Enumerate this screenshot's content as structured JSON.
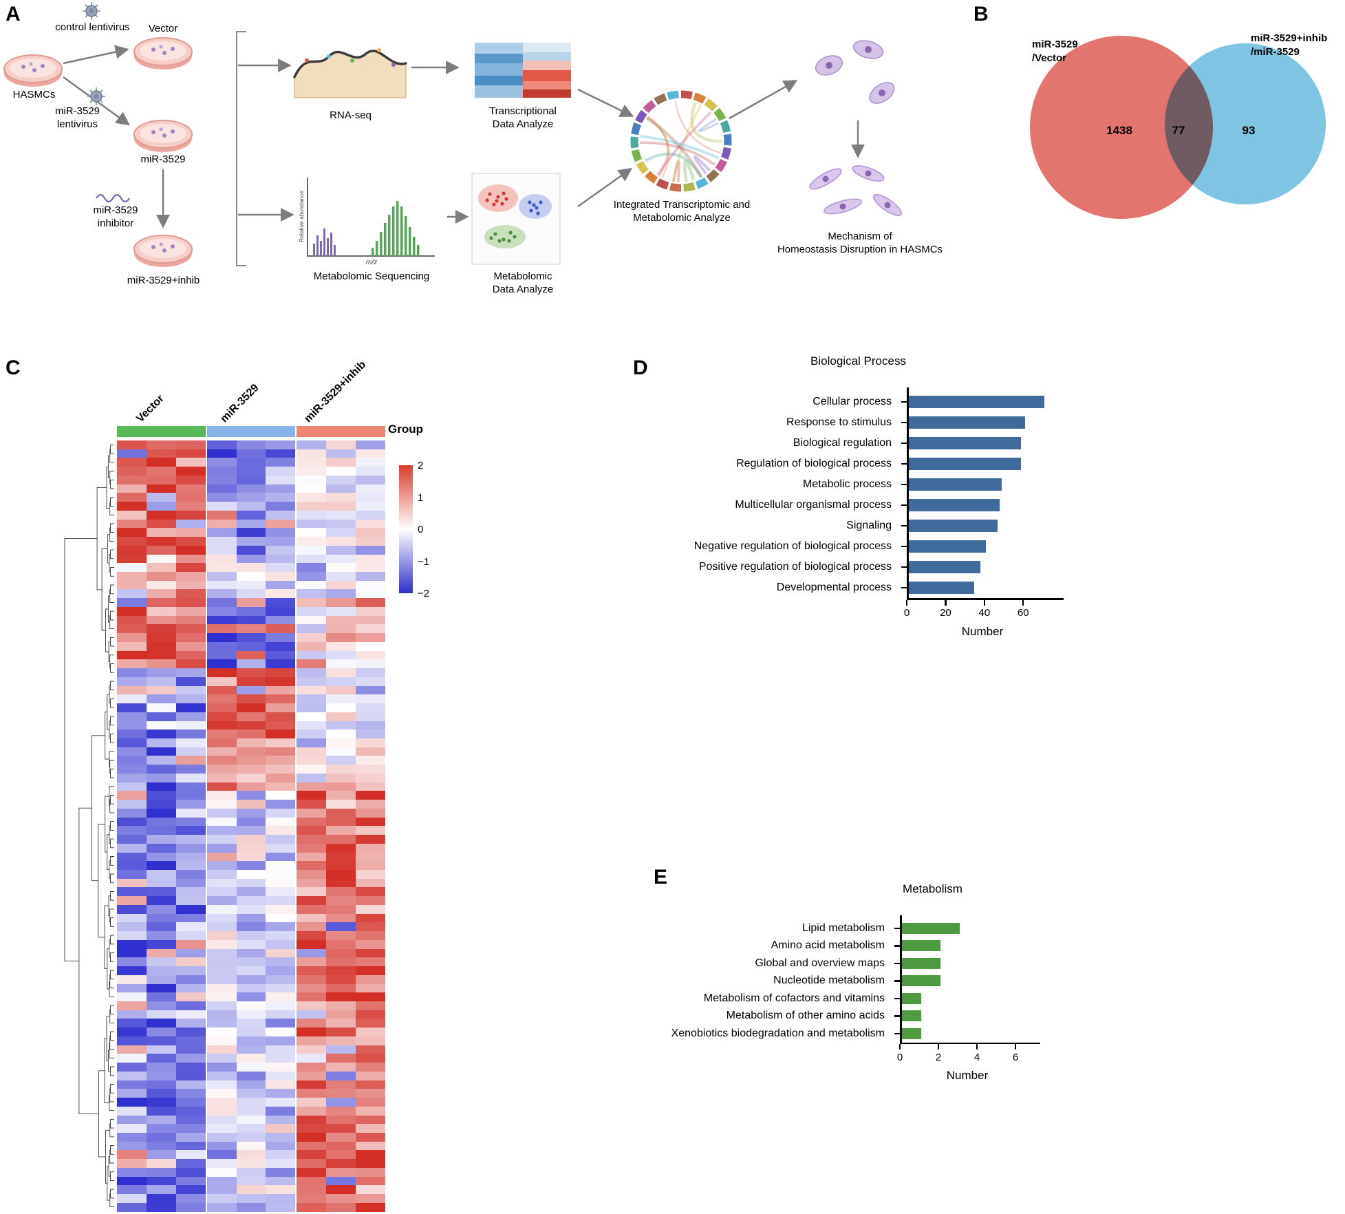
{
  "panelA": {
    "label": "A",
    "control_lentivirus": "control lentivirus",
    "hasmcs": "HASMCs",
    "vector": "Vector",
    "mir_lentivirus": "miR-3529\nlentivirus",
    "mir3529": "miR-3529",
    "mir_inhibitor": "miR-3529\ninhibitor",
    "mir_inhib_dish": "miR-3529+inhib",
    "rnaseq": "RNA-seq",
    "metabolomic_seq": "Metabolomic Sequencing",
    "transcriptional": "Transcriptional\nData Analyze",
    "metabolomic_da": "Metabolomic\nData Analyze",
    "integrated": "Integrated Transcriptomic and\nMetabolomic Analyze",
    "mechanism": "Mechanism of\nHomeostasis Disruption in HASMCs",
    "mini_ylabel": "Relative abundance",
    "mini_xlabel": "m/z"
  },
  "panelB": {
    "label": "B",
    "left_label": "miR-3529\n/Vector",
    "right_label": "miR-3529+inhib\n/miR-3529",
    "left_value": "1438",
    "overlap_value": "77",
    "right_value": "93",
    "left_color": "#e2766f",
    "right_color": "#7fc4e2"
  },
  "panelC": {
    "label": "C",
    "groups": [
      {
        "name": "Vector",
        "color": "#57b957"
      },
      {
        "name": "miR-3529",
        "color": "#86b3ea"
      },
      {
        "name": "miR-3529+inhib",
        "color": "#ef8573"
      }
    ],
    "group_label": "Group",
    "legend_ticks": [
      "2",
      "1",
      "0",
      "−1",
      "−2"
    ],
    "heatmap": {
      "cols_per_group": 3,
      "row_groups": [
        {
          "rows": 13,
          "means": [
            1.6,
            -1.2,
            -0.15
          ]
        },
        {
          "rows": 5,
          "means": [
            1.1,
            -0.35,
            -0.3
          ]
        },
        {
          "rows": 8,
          "means": [
            1.4,
            -1.7,
            0.45
          ]
        },
        {
          "rows": 9,
          "means": [
            -1.1,
            1.5,
            -0.3
          ]
        },
        {
          "rows": 5,
          "means": [
            -1.2,
            0.9,
            0.05
          ]
        },
        {
          "rows": 48,
          "means": [
            -1.2,
            -0.35,
            1.35
          ]
        }
      ],
      "pos_color": "#d32f27",
      "neg_color": "#3030d0",
      "legend_range": [
        -2,
        2
      ]
    }
  },
  "panelD": {
    "label": "D"
  },
  "panelE": {
    "label": "E"
  },
  "chart_data": [
    {
      "id": "biological_process",
      "type": "bar",
      "orientation": "horizontal",
      "title": "Biological Process",
      "categories": [
        "Cellular process",
        "Response to stimulus",
        "Biological regulation",
        "Regulation of biological process",
        "Metabolic process",
        "Multicellular organismal process",
        "Signaling",
        "Negative regulation of biological process",
        "Positive regulation of biological process",
        "Developmental process"
      ],
      "values": [
        70,
        60,
        58,
        58,
        48,
        47,
        46,
        40,
        37,
        34
      ],
      "xlabel": "Number",
      "xticks": [
        0,
        20,
        40,
        60
      ],
      "xlim": [
        0,
        78
      ],
      "bar_color": "#3e6b9c"
    },
    {
      "id": "metabolism",
      "type": "bar",
      "orientation": "horizontal",
      "title": "Metabolism",
      "categories": [
        "Lipid metabolism",
        "Amino acid metabolism",
        "Global and overview maps",
        "Nucleotide metabolism",
        "Metabolism of cofactors and vitamins",
        "Metabolism of other amino acids",
        "Xenobiotics biodegradation and metabolism"
      ],
      "values": [
        3,
        2,
        2,
        2,
        1,
        1,
        1
      ],
      "xlabel": "Number",
      "xticks": [
        0,
        2,
        4,
        6
      ],
      "xlim": [
        0,
        7
      ],
      "bar_color": "#4e9a41"
    },
    {
      "id": "venn_degs",
      "type": "venn",
      "sets": [
        "miR-3529/Vector",
        "miR-3529+inhib/miR-3529"
      ],
      "left_only": 1438,
      "overlap": 77,
      "right_only": 93
    },
    {
      "id": "expression_heatmap",
      "type": "heatmap",
      "column_groups": [
        "Vector",
        "miR-3529",
        "miR-3529+inhib"
      ],
      "samples_per_group": 3,
      "legend_range": [
        -2,
        2
      ]
    }
  ]
}
